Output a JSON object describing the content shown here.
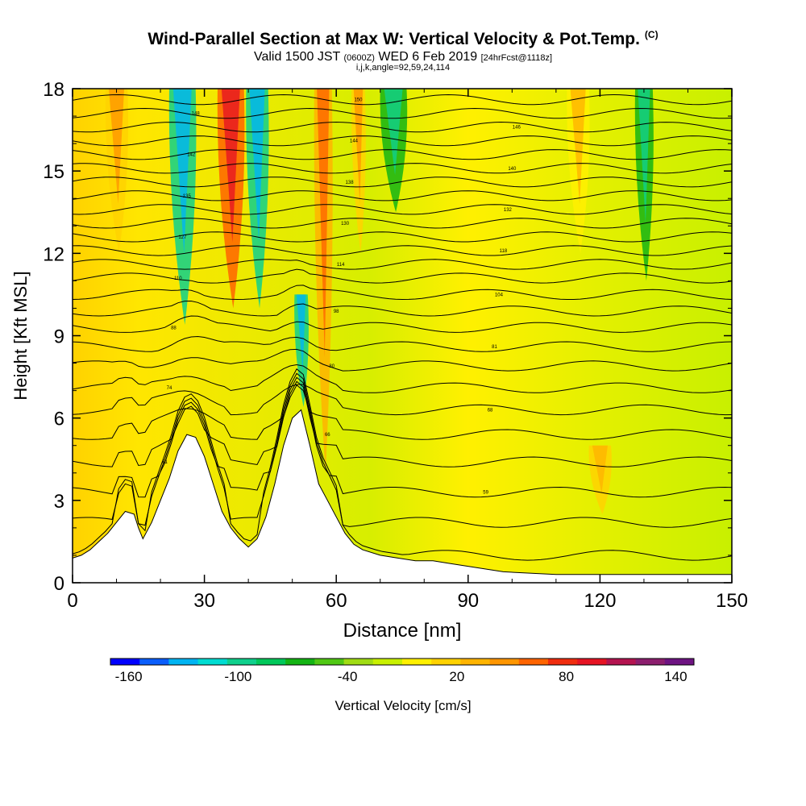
{
  "header": {
    "title": "Wind-Parallel Section at Max W: Vertical Velocity & Pot.Temp.",
    "copyright": "(C)",
    "valid_prefix": "Valid 1500 JST",
    "valid_utc": "(0600Z)",
    "valid_date": "WED 6 Feb 2019",
    "forecast": "[24hrFcst@1118z]",
    "grid_info": "i,j,k,angle=92,59,24,114"
  },
  "chart_data": {
    "type": "heatmap",
    "xlabel": "Distance [nm]",
    "ylabel": "Height [Kft MSL]",
    "xlim": [
      0,
      150
    ],
    "ylim": [
      0,
      18
    ],
    "xticks": [
      0,
      30,
      60,
      90,
      120,
      150
    ],
    "yticks": [
      0,
      3,
      6,
      9,
      12,
      15,
      18
    ],
    "terrain": [
      [
        0,
        0.9
      ],
      [
        2,
        1.0
      ],
      [
        4,
        1.2
      ],
      [
        6,
        1.5
      ],
      [
        8,
        1.8
      ],
      [
        10,
        2.2
      ],
      [
        12,
        2.6
      ],
      [
        14,
        2.5
      ],
      [
        15,
        2.0
      ],
      [
        16,
        1.6
      ],
      [
        18,
        2.2
      ],
      [
        20,
        3.0
      ],
      [
        22,
        3.8
      ],
      [
        24,
        4.8
      ],
      [
        26,
        5.4
      ],
      [
        28,
        5.3
      ],
      [
        30,
        4.6
      ],
      [
        32,
        3.6
      ],
      [
        34,
        2.6
      ],
      [
        36,
        2.0
      ],
      [
        38,
        1.6
      ],
      [
        40,
        1.3
      ],
      [
        42,
        1.6
      ],
      [
        44,
        2.4
      ],
      [
        46,
        3.6
      ],
      [
        48,
        5.0
      ],
      [
        50,
        6.0
      ],
      [
        52,
        6.3
      ],
      [
        54,
        5.0
      ],
      [
        56,
        3.6
      ],
      [
        58,
        3.0
      ],
      [
        60,
        2.4
      ],
      [
        62,
        1.8
      ],
      [
        64,
        1.4
      ],
      [
        66,
        1.2
      ],
      [
        70,
        1.0
      ],
      [
        74,
        0.9
      ],
      [
        78,
        0.8
      ],
      [
        82,
        0.8
      ],
      [
        86,
        0.7
      ],
      [
        90,
        0.6
      ],
      [
        94,
        0.5
      ],
      [
        98,
        0.4
      ],
      [
        104,
        0.35
      ],
      [
        110,
        0.3
      ],
      [
        120,
        0.3
      ],
      [
        130,
        0.3
      ],
      [
        140,
        0.3
      ],
      [
        150,
        0.3
      ]
    ],
    "velocity_field": [
      {
        "x": 25,
        "top": 18,
        "bottom": 9.4,
        "w": 6,
        "value": -80
      },
      {
        "x": 42,
        "top": 18,
        "bottom": 10.0,
        "w": 5,
        "value": -80
      },
      {
        "x": 52,
        "top": 10.5,
        "bottom": 6.4,
        "w": 3,
        "value": -80
      },
      {
        "x": 73,
        "top": 18,
        "bottom": 13.5,
        "w": 6,
        "value": -40
      },
      {
        "x": 130,
        "top": 18,
        "bottom": 11.0,
        "w": 4,
        "value": -40
      },
      {
        "x": 36,
        "top": 18,
        "bottom": 10.0,
        "w": 6,
        "value": 120
      },
      {
        "x": 57,
        "top": 18,
        "bottom": 4.0,
        "w": 4,
        "value": 80
      },
      {
        "x": 10,
        "top": 18,
        "bottom": 12.0,
        "w": 5,
        "value": 60
      },
      {
        "x": 65,
        "top": 18,
        "bottom": 12.0,
        "w": 3,
        "value": 60
      },
      {
        "x": 115,
        "top": 18,
        "bottom": 12.0,
        "w": 5,
        "value": 40
      },
      {
        "x": 120,
        "top": 5.0,
        "bottom": 2.5,
        "w": 5,
        "value": 50
      }
    ],
    "theta_contours": [
      {
        "base": 1.0,
        "label": ""
      },
      {
        "base": 2.2,
        "label": ""
      },
      {
        "base": 3.3,
        "label": "59"
      },
      {
        "base": 4.4,
        "label": "61"
      },
      {
        "base": 5.4,
        "label": "66"
      },
      {
        "base": 6.3,
        "label": "68"
      },
      {
        "base": 7.1,
        "label": "74"
      },
      {
        "base": 7.9,
        "label": "80"
      },
      {
        "base": 8.6,
        "label": "81"
      },
      {
        "base": 9.3,
        "label": "88"
      },
      {
        "base": 9.9,
        "label": "98"
      },
      {
        "base": 10.5,
        "label": "104"
      },
      {
        "base": 11.1,
        "label": "110"
      },
      {
        "base": 11.6,
        "label": "114"
      },
      {
        "base": 12.1,
        "label": "118"
      },
      {
        "base": 12.6,
        "label": "127"
      },
      {
        "base": 13.1,
        "label": "130"
      },
      {
        "base": 13.6,
        "label": "132"
      },
      {
        "base": 14.1,
        "label": "135"
      },
      {
        "base": 14.6,
        "label": "138"
      },
      {
        "base": 15.1,
        "label": "140"
      },
      {
        "base": 15.6,
        "label": "142"
      },
      {
        "base": 16.1,
        "label": "144"
      },
      {
        "base": 16.6,
        "label": "146"
      },
      {
        "base": 17.1,
        "label": "148"
      },
      {
        "base": 17.6,
        "label": "150"
      }
    ],
    "colorbar": {
      "label": "Vertical Velocity [cm/s]",
      "min": -170,
      "max": 150,
      "step": 20,
      "tick_values": [
        -160,
        -100,
        -40,
        20,
        80,
        140
      ],
      "tick_labels": [
        "-160",
        "-100",
        "-40",
        "20",
        "80",
        "140"
      ],
      "colors": [
        "#0000ff",
        "#0a5dfb",
        "#00b4f2",
        "#00dcd2",
        "#0fd08c",
        "#00c85a",
        "#14b414",
        "#50c814",
        "#a0dc14",
        "#c8f000",
        "#fff000",
        "#ffd200",
        "#ffb400",
        "#ff9600",
        "#ff6400",
        "#f02d0f",
        "#e61423",
        "#b41450",
        "#8c1e6e",
        "#6e1482"
      ]
    }
  }
}
